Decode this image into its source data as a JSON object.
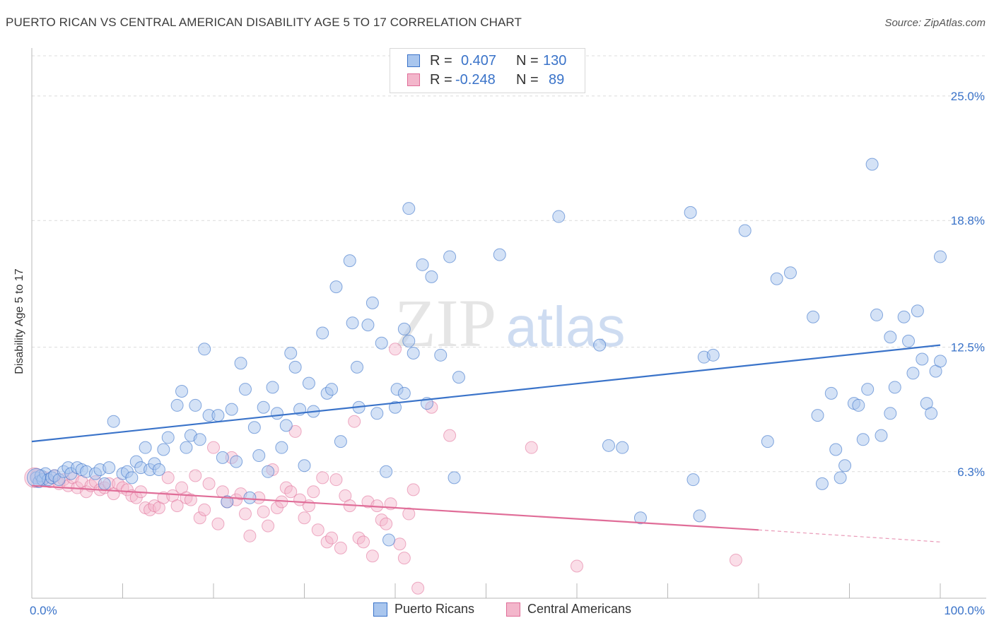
{
  "header": {
    "title": "PUERTO RICAN VS CENTRAL AMERICAN DISABILITY AGE 5 TO 17 CORRELATION CHART",
    "source": "Source: ZipAtlas.com"
  },
  "watermark": {
    "zip": "ZIP",
    "atlas": "atlas"
  },
  "colors": {
    "blue": "#3a73c9",
    "blue_fill": "#a9c6ee",
    "pink": "#e06d98",
    "pink_fill": "#f3b6cb",
    "grid": "#dcdcdc"
  },
  "legend_top": {
    "rows": [
      {
        "r_label": "R =",
        "r_value": "0.407",
        "n_label": "N =",
        "n_value": "130"
      },
      {
        "r_label": "R =",
        "r_value": "-0.248",
        "n_label": "N =",
        "n_value": "89"
      }
    ]
  },
  "legend_bottom": {
    "items": [
      "Puerto Ricans",
      "Central Americans"
    ]
  },
  "chart_data": {
    "type": "scatter",
    "title": "PUERTO RICAN VS CENTRAL AMERICAN DISABILITY AGE 5 TO 17 CORRELATION CHART",
    "xlabel": "",
    "ylabel": "Disability Age 5 to 17",
    "xlim": [
      0,
      100
    ],
    "ylim": [
      0,
      27
    ],
    "x_tick_labels": [
      "0.0%",
      "100.0%"
    ],
    "y_ticks": [
      6.3,
      12.5,
      18.8,
      25.0
    ],
    "y_tick_labels": [
      "6.3%",
      "12.5%",
      "18.8%",
      "25.0%"
    ],
    "grid": true,
    "legend_position": "bottom",
    "series": [
      {
        "name": "Puerto Ricans",
        "color": "#3a73c9",
        "r": 0.407,
        "n": 130,
        "trend": {
          "x": [
            0,
            100
          ],
          "y": [
            7.8,
            12.6
          ]
        },
        "points": [
          [
            0.5,
            6.0
          ],
          [
            0.8,
            5.8
          ],
          [
            1.0,
            6.1
          ],
          [
            1.2,
            5.9
          ],
          [
            1.5,
            6.2
          ],
          [
            1.8,
            5.9
          ],
          [
            2.2,
            6.0
          ],
          [
            2.5,
            6.1
          ],
          [
            3.0,
            5.9
          ],
          [
            3.5,
            6.3
          ],
          [
            4.0,
            6.5
          ],
          [
            4.3,
            6.2
          ],
          [
            5.0,
            6.5
          ],
          [
            5.5,
            6.4
          ],
          [
            6.0,
            6.3
          ],
          [
            7.0,
            6.2
          ],
          [
            7.5,
            6.4
          ],
          [
            8.0,
            5.7
          ],
          [
            8.5,
            6.5
          ],
          [
            9.0,
            8.8
          ],
          [
            10.0,
            6.2
          ],
          [
            10.5,
            6.3
          ],
          [
            11.0,
            6.0
          ],
          [
            11.5,
            6.8
          ],
          [
            12.0,
            6.5
          ],
          [
            12.5,
            7.5
          ],
          [
            13.0,
            6.4
          ],
          [
            13.5,
            6.7
          ],
          [
            14.0,
            6.4
          ],
          [
            14.5,
            7.4
          ],
          [
            15.0,
            8.0
          ],
          [
            16.0,
            9.6
          ],
          [
            16.5,
            10.3
          ],
          [
            17.0,
            7.5
          ],
          [
            17.5,
            8.1
          ],
          [
            18.0,
            9.6
          ],
          [
            18.5,
            7.9
          ],
          [
            19.0,
            12.4
          ],
          [
            19.5,
            9.1
          ],
          [
            20.5,
            9.1
          ],
          [
            21.0,
            7.0
          ],
          [
            21.5,
            4.8
          ],
          [
            22.0,
            9.4
          ],
          [
            22.5,
            6.8
          ],
          [
            23.0,
            11.7
          ],
          [
            23.5,
            10.4
          ],
          [
            24.0,
            5.0
          ],
          [
            24.5,
            8.5
          ],
          [
            25.0,
            7.1
          ],
          [
            25.5,
            9.5
          ],
          [
            26.0,
            6.3
          ],
          [
            26.5,
            10.5
          ],
          [
            27.0,
            9.2
          ],
          [
            27.5,
            7.5
          ],
          [
            28.0,
            8.6
          ],
          [
            28.5,
            12.2
          ],
          [
            29.0,
            11.5
          ],
          [
            29.5,
            9.4
          ],
          [
            30.0,
            6.6
          ],
          [
            30.5,
            10.7
          ],
          [
            31.0,
            9.3
          ],
          [
            32.0,
            13.2
          ],
          [
            32.5,
            10.2
          ],
          [
            33.0,
            10.4
          ],
          [
            33.5,
            15.5
          ],
          [
            34.0,
            7.8
          ],
          [
            35.0,
            16.8
          ],
          [
            35.3,
            13.7
          ],
          [
            35.8,
            11.5
          ],
          [
            36.0,
            9.5
          ],
          [
            37.0,
            13.6
          ],
          [
            37.5,
            14.7
          ],
          [
            38.0,
            9.2
          ],
          [
            38.5,
            12.7
          ],
          [
            39.0,
            6.3
          ],
          [
            39.3,
            2.9
          ],
          [
            40.0,
            9.5
          ],
          [
            41.0,
            13.4
          ],
          [
            41.5,
            12.8
          ],
          [
            40.2,
            10.4
          ],
          [
            41.0,
            10.2
          ],
          [
            42.0,
            12.2
          ],
          [
            41.5,
            19.4
          ],
          [
            43.0,
            16.6
          ],
          [
            43.5,
            9.7
          ],
          [
            44.0,
            16.0
          ],
          [
            45.0,
            12.1
          ],
          [
            46.0,
            17.0
          ],
          [
            46.5,
            6.0
          ],
          [
            47.0,
            11.0
          ],
          [
            51.5,
            17.1
          ],
          [
            58.0,
            19.0
          ],
          [
            62.5,
            12.6
          ],
          [
            63.5,
            7.6
          ],
          [
            65.0,
            7.5
          ],
          [
            67.0,
            4.0
          ],
          [
            72.5,
            19.2
          ],
          [
            72.8,
            5.9
          ],
          [
            73.5,
            4.1
          ],
          [
            74.0,
            12.0
          ],
          [
            75.0,
            12.1
          ],
          [
            78.5,
            18.3
          ],
          [
            81.0,
            7.8
          ],
          [
            82.0,
            15.9
          ],
          [
            83.5,
            16.2
          ],
          [
            86.0,
            14.0
          ],
          [
            86.5,
            9.1
          ],
          [
            87.0,
            5.7
          ],
          [
            88.0,
            10.2
          ],
          [
            88.5,
            7.4
          ],
          [
            89.0,
            6.0
          ],
          [
            89.5,
            6.6
          ],
          [
            90.5,
            9.7
          ],
          [
            91.0,
            9.6
          ],
          [
            91.5,
            7.9
          ],
          [
            92.0,
            10.4
          ],
          [
            92.5,
            21.6
          ],
          [
            93.0,
            14.1
          ],
          [
            93.5,
            8.1
          ],
          [
            94.5,
            13.0
          ],
          [
            94.5,
            9.2
          ],
          [
            95.0,
            10.5
          ],
          [
            96.0,
            14.0
          ],
          [
            96.5,
            12.8
          ],
          [
            97.0,
            11.2
          ],
          [
            97.5,
            14.3
          ],
          [
            98.0,
            11.9
          ],
          [
            98.5,
            9.7
          ],
          [
            99.0,
            9.2
          ],
          [
            99.5,
            11.3
          ],
          [
            100.0,
            11.8
          ],
          [
            100.0,
            17.0
          ]
        ]
      },
      {
        "name": "Central Americans",
        "color": "#e06d98",
        "r": -0.248,
        "n": 89,
        "trend": {
          "x": [
            0,
            80
          ],
          "y": [
            5.6,
            3.4
          ]
        },
        "trend_dashed": {
          "x": [
            80,
            100
          ],
          "y": [
            3.4,
            2.8
          ]
        },
        "points": [
          [
            0.5,
            6.1
          ],
          [
            1.0,
            5.9
          ],
          [
            1.5,
            6.0
          ],
          [
            2.0,
            5.8
          ],
          [
            2.5,
            6.1
          ],
          [
            3.0,
            5.7
          ],
          [
            3.5,
            5.9
          ],
          [
            4.0,
            5.6
          ],
          [
            4.5,
            6.0
          ],
          [
            5.0,
            5.5
          ],
          [
            5.5,
            5.8
          ],
          [
            6.0,
            5.3
          ],
          [
            6.5,
            5.6
          ],
          [
            7.0,
            5.8
          ],
          [
            7.5,
            5.4
          ],
          [
            8.0,
            5.5
          ],
          [
            8.5,
            5.7
          ],
          [
            9.0,
            5.2
          ],
          [
            9.5,
            5.7
          ],
          [
            10.0,
            5.5
          ],
          [
            10.5,
            5.4
          ],
          [
            11.0,
            5.1
          ],
          [
            11.5,
            5.0
          ],
          [
            12.0,
            5.3
          ],
          [
            12.5,
            4.5
          ],
          [
            13.0,
            4.4
          ],
          [
            13.5,
            4.6
          ],
          [
            14.0,
            4.5
          ],
          [
            14.5,
            5.0
          ],
          [
            15.0,
            6.0
          ],
          [
            15.5,
            5.1
          ],
          [
            16.0,
            4.6
          ],
          [
            16.5,
            5.5
          ],
          [
            17.0,
            5.0
          ],
          [
            17.5,
            4.9
          ],
          [
            18.0,
            6.1
          ],
          [
            18.5,
            4.0
          ],
          [
            19.0,
            4.4
          ],
          [
            19.5,
            5.7
          ],
          [
            20.0,
            7.5
          ],
          [
            20.5,
            3.7
          ],
          [
            21.0,
            5.3
          ],
          [
            21.5,
            4.8
          ],
          [
            22.0,
            7.0
          ],
          [
            22.5,
            4.9
          ],
          [
            23.0,
            5.2
          ],
          [
            23.5,
            4.2
          ],
          [
            24.0,
            3.1
          ],
          [
            25.0,
            5.0
          ],
          [
            25.5,
            4.3
          ],
          [
            26.0,
            3.6
          ],
          [
            26.5,
            6.4
          ],
          [
            27.0,
            4.5
          ],
          [
            27.5,
            4.8
          ],
          [
            28.0,
            5.5
          ],
          [
            28.5,
            5.3
          ],
          [
            29.0,
            8.3
          ],
          [
            29.5,
            4.9
          ],
          [
            30.0,
            4.0
          ],
          [
            30.5,
            4.6
          ],
          [
            31.0,
            5.3
          ],
          [
            31.5,
            3.4
          ],
          [
            32.0,
            6.0
          ],
          [
            32.5,
            2.8
          ],
          [
            33.0,
            3.0
          ],
          [
            33.5,
            5.9
          ],
          [
            34.0,
            2.5
          ],
          [
            34.5,
            5.1
          ],
          [
            35.0,
            4.6
          ],
          [
            35.5,
            8.8
          ],
          [
            36.0,
            3.0
          ],
          [
            36.5,
            2.8
          ],
          [
            37.0,
            4.8
          ],
          [
            37.5,
            2.1
          ],
          [
            38.0,
            4.6
          ],
          [
            38.5,
            3.9
          ],
          [
            39.0,
            3.7
          ],
          [
            39.5,
            4.7
          ],
          [
            40.0,
            12.4
          ],
          [
            40.5,
            2.7
          ],
          [
            41.0,
            2.0
          ],
          [
            41.5,
            4.2
          ],
          [
            42.0,
            5.4
          ],
          [
            42.5,
            0.5
          ],
          [
            44.0,
            9.5
          ],
          [
            46.0,
            8.1
          ],
          [
            55.0,
            7.5
          ],
          [
            60.0,
            1.6
          ],
          [
            77.5,
            1.9
          ]
        ]
      }
    ]
  }
}
